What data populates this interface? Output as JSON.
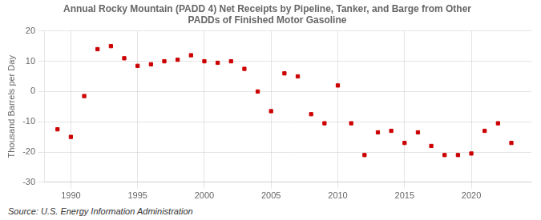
{
  "chart_data": {
    "type": "scatter",
    "title": "Annual Rocky Mountain (PADD 4) Net Receipts by Pipeline, Tanker, and Barge from Other\nPADDs of Finished Motor Gasoline",
    "ylabel": "Thousand Barrels per Day",
    "source": "Source: U.S. Energy Information Administration",
    "x": [
      1989,
      1990,
      1991,
      1992,
      1993,
      1994,
      1995,
      1996,
      1997,
      1998,
      1999,
      2000,
      2001,
      2002,
      2003,
      2004,
      2005,
      2006,
      2007,
      2008,
      2009,
      2010,
      2011,
      2012,
      2013,
      2014,
      2015,
      2016,
      2017,
      2018,
      2019,
      2020,
      2021,
      2022,
      2023
    ],
    "values": [
      -12.5,
      -15.0,
      -1.5,
      14.0,
      15.0,
      11.0,
      8.5,
      9.0,
      10.0,
      10.5,
      12.0,
      10.0,
      9.5,
      10.0,
      7.5,
      0.0,
      -6.5,
      6.0,
      5.0,
      -7.5,
      -10.5,
      2.0,
      -10.5,
      -21.0,
      -13.5,
      -13.0,
      -17.0,
      -13.5,
      -18.0,
      -21.0,
      -21.0,
      -20.5,
      -13.0,
      -10.5,
      -17.0
    ],
    "color": "#cc0000",
    "marker": "square",
    "xlim": [
      1988.0,
      2024.5
    ],
    "xticks": [
      1990,
      1995,
      2000,
      2005,
      2010,
      2015,
      2020
    ],
    "ylim": [
      -30,
      20
    ],
    "yticks": [
      -30,
      -20,
      -10,
      0,
      10,
      20
    ],
    "grid": true
  }
}
